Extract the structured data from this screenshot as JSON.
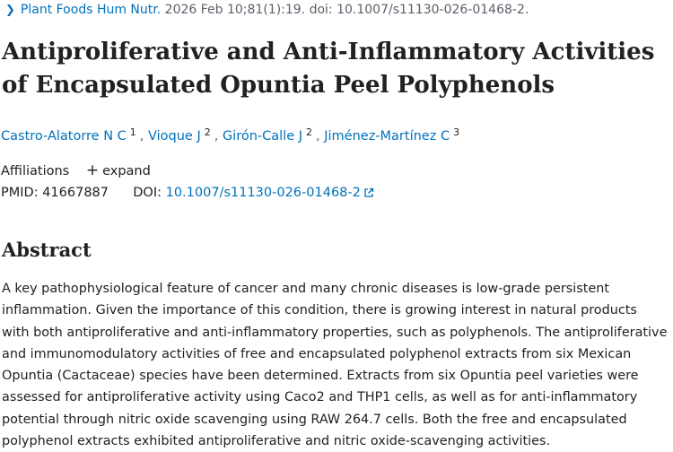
{
  "citation": {
    "journal": "Plant Foods Hum Nutr.",
    "details": "2026 Feb 10;81(1):19. doi: 10.1007/s11130-026-01468-2."
  },
  "article": {
    "title": "Antiproliferative and Anti-Inflammatory Activities of Encapsulated Opuntia Peel Polyphenols"
  },
  "authors": [
    {
      "name": "Castro-Alatorre N C",
      "affil": "1",
      "sep": ","
    },
    {
      "name": "Vioque J",
      "affil": "2",
      "sep": ","
    },
    {
      "name": "Girón-Calle J",
      "affil": "2",
      "sep": ","
    },
    {
      "name": "Jiménez-Martínez C",
      "affil": "3",
      "sep": ""
    }
  ],
  "affiliations": {
    "label": "Affiliations",
    "expand_label": "expand"
  },
  "identifiers": {
    "pmid_label": "PMID:",
    "pmid": "41667887",
    "doi_label": "DOI:",
    "doi": "10.1007/s11130-026-01468-2"
  },
  "abstract": {
    "heading": "Abstract",
    "text": "A key pathophysiological feature of cancer and many chronic diseases is low-grade persistent inflammation. Given the importance of this condition, there is growing interest in natural products with both antiproliferative and anti-inflammatory properties, such as polyphenols. The antiproliferative and immunomodulatory activities of free and encapsulated polyphenol extracts from six Mexican Opuntia (Cactaceae) species have been determined. Extracts from six Opuntia peel varieties were assessed for antiproliferative activity using Caco2 and THP1 cells, as well as for anti-inflammatory potential through nitric oxide scavenging using RAW 264.7 cells. Both the free and encapsulated polyphenol extracts exhibited antiproliferative and nitric oxide-scavenging activities."
  },
  "colors": {
    "link": "#0071bc",
    "text": "#212121",
    "muted": "#5b616b"
  },
  "icons": {
    "journal_chevron": "chevron-right-icon",
    "expand": "plus-icon",
    "doi_external": "external-link-icon"
  }
}
